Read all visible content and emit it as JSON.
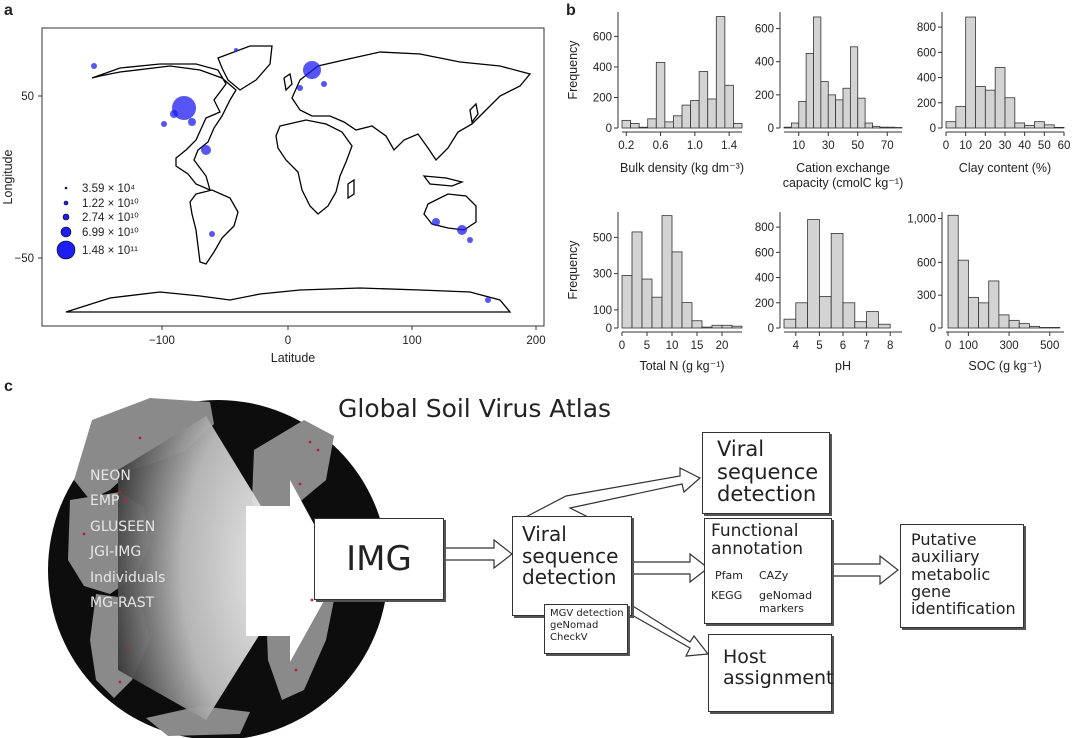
{
  "panels": {
    "a": "a",
    "b": "b",
    "c": "c"
  },
  "map": {
    "xlabel": "Latitude",
    "ylabel": "Longitude",
    "xticks": [
      "−100",
      "0",
      "100",
      "200"
    ],
    "yticks": [
      "50",
      "−50"
    ],
    "legend": [
      "3.59 × 10⁴",
      "1.22 × 10¹⁰",
      "2.74 × 10¹⁰",
      "6.99 × 10¹⁰",
      "1.48 × 10¹¹"
    ],
    "point_color": "#1e1ef0"
  },
  "chart_data": [
    {
      "type": "bar",
      "xlabel": "Bulk density (kg dm⁻³)",
      "ylabel": "Frequency",
      "xlim": [
        0.15,
        1.55
      ],
      "ylim": [
        0,
        760
      ],
      "xticks": [
        0.2,
        0.6,
        1.0,
        1.4
      ],
      "xtick_labels": [
        "0.2",
        "0.6",
        "1.0",
        "1.4"
      ],
      "yticks": [
        0,
        200,
        400,
        600
      ],
      "ytick_labels": [
        "0",
        "200",
        "400",
        "600"
      ],
      "bin_edges": [
        0.15,
        0.25,
        0.35,
        0.45,
        0.55,
        0.65,
        0.75,
        0.85,
        0.95,
        1.05,
        1.15,
        1.25,
        1.35,
        1.45,
        1.55
      ],
      "values": [
        50,
        30,
        5,
        60,
        430,
        40,
        80,
        150,
        180,
        370,
        190,
        730,
        280,
        30
      ]
    },
    {
      "type": "bar",
      "xlabel": "Cation exchange capacity (cmolC kg⁻¹)",
      "ylabel": "",
      "xlim": [
        0,
        80
      ],
      "ylim": [
        0,
        700
      ],
      "xticks": [
        10,
        30,
        50,
        70
      ],
      "xtick_labels": [
        "10",
        "30",
        "50",
        "70"
      ],
      "yticks": [
        0,
        200,
        400,
        600
      ],
      "ytick_labels": [
        "0",
        "200",
        "400",
        "600"
      ],
      "bin_edges": [
        0,
        5,
        10,
        15,
        20,
        25,
        30,
        35,
        40,
        45,
        50,
        55,
        60,
        65,
        70,
        75,
        80
      ],
      "values": [
        5,
        30,
        160,
        450,
        670,
        280,
        200,
        170,
        240,
        490,
        180,
        30,
        10,
        5,
        5,
        3
      ]
    },
    {
      "type": "bar",
      "xlabel": "Clay content (%)",
      "ylabel": "",
      "xlim": [
        0,
        60
      ],
      "ylim": [
        0,
        920
      ],
      "xticks": [
        0,
        10,
        20,
        30,
        40,
        50,
        60
      ],
      "xtick_labels": [
        "0",
        "10",
        "20",
        "30",
        "40",
        "50",
        "60"
      ],
      "yticks": [
        0,
        200,
        400,
        600,
        800
      ],
      "ytick_labels": [
        "0",
        "200",
        "400",
        "600",
        "800"
      ],
      "bin_edges": [
        0,
        5,
        10,
        15,
        20,
        25,
        30,
        35,
        40,
        45,
        50,
        55,
        60
      ],
      "values": [
        50,
        170,
        880,
        330,
        300,
        480,
        240,
        40,
        20,
        50,
        25,
        5
      ]
    },
    {
      "type": "bar",
      "xlabel": "Total N (g kg⁻¹)",
      "ylabel": "Frequency",
      "xlim": [
        0,
        24
      ],
      "ylim": [
        0,
        640
      ],
      "xticks": [
        0,
        5,
        10,
        15,
        20
      ],
      "xtick_labels": [
        "0",
        "5",
        "10",
        "15",
        "20"
      ],
      "yticks": [
        0,
        100,
        300,
        500
      ],
      "ytick_labels": [
        "0",
        "100",
        "300",
        "500"
      ],
      "bin_edges": [
        0,
        2,
        4,
        6,
        8,
        10,
        12,
        14,
        16,
        18,
        20,
        22,
        24
      ],
      "values": [
        290,
        530,
        270,
        170,
        620,
        420,
        140,
        40,
        5,
        15,
        15,
        10
      ]
    },
    {
      "type": "bar",
      "xlabel": "pH",
      "ylabel": "",
      "xlim": [
        3.5,
        8.5
      ],
      "ylim": [
        0,
        920
      ],
      "xticks": [
        4,
        5,
        6,
        7,
        8
      ],
      "xtick_labels": [
        "4",
        "5",
        "6",
        "7",
        "8"
      ],
      "yticks": [
        0,
        200,
        400,
        600,
        800
      ],
      "ytick_labels": [
        "0",
        "200",
        "400",
        "600",
        "800"
      ],
      "bin_edges": [
        3.5,
        4.0,
        4.5,
        5.0,
        5.5,
        6.0,
        6.5,
        7.0,
        7.5,
        8.0,
        8.5
      ],
      "values": [
        70,
        200,
        860,
        250,
        750,
        200,
        50,
        130,
        30,
        0
      ]
    },
    {
      "type": "bar",
      "xlabel": "SOC (g kg⁻¹)",
      "ylabel": "",
      "xlim": [
        -10,
        570
      ],
      "ylim": [
        0,
        1060
      ],
      "xticks": [
        0,
        100,
        300,
        500
      ],
      "xtick_labels": [
        "0",
        "100",
        "300",
        "500"
      ],
      "yticks": [
        0,
        300,
        600,
        1000
      ],
      "ytick_labels": [
        "0",
        "300",
        "600",
        "1,000"
      ],
      "bin_edges": [
        0,
        50,
        100,
        150,
        200,
        250,
        300,
        350,
        400,
        450,
        500,
        550
      ],
      "values": [
        1030,
        620,
        280,
        230,
        430,
        120,
        70,
        40,
        15,
        5,
        5
      ]
    }
  ],
  "diagram": {
    "title": "Global Soil Virus Atlas",
    "sources": [
      "NEON",
      "EMP",
      "GLUSEEN",
      "JGI-IMG",
      "Individuals",
      "MG-RAST"
    ],
    "img": "IMG",
    "vsd1": [
      "Viral",
      "sequence",
      "detection"
    ],
    "vsd1_tools": [
      "MGV detection",
      "geNomad",
      "CheckV"
    ],
    "vsd2": [
      "Viral",
      "sequence",
      "detection"
    ],
    "func": [
      "Functional",
      "annotation"
    ],
    "func_tools": [
      "Pfam",
      "CAZy",
      "KEGG",
      "geNomad",
      "markers"
    ],
    "host": [
      "Host",
      "assignment"
    ],
    "putative": [
      "Putative",
      "auxiliary",
      "metabolic",
      "gene",
      "identification"
    ]
  }
}
